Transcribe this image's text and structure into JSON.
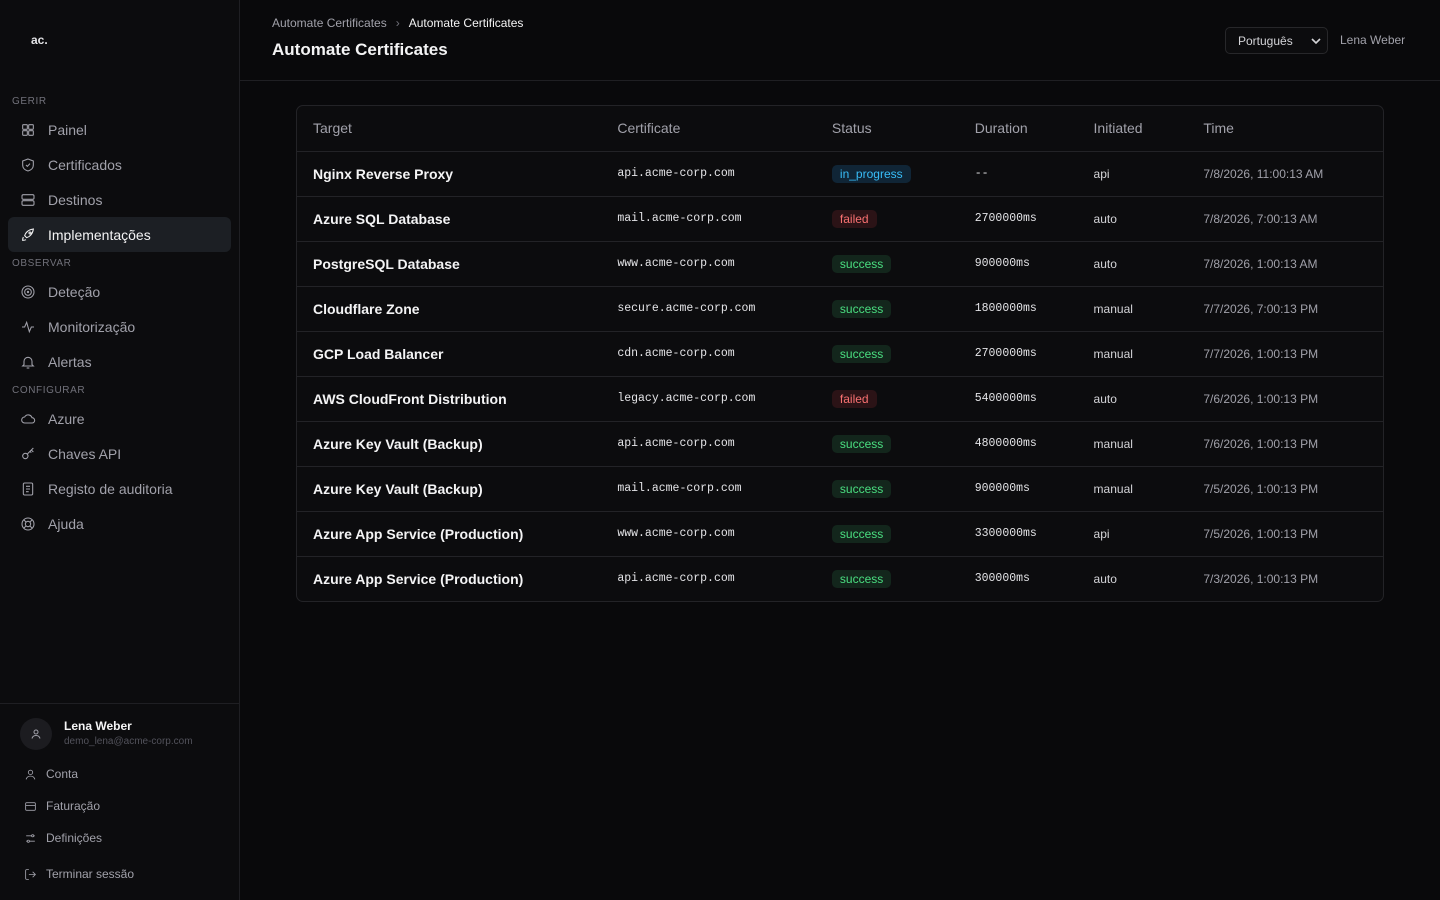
{
  "sidebar": {
    "logo": "ac.",
    "sections": [
      {
        "label": "GERIR",
        "items": [
          {
            "label": "Painel"
          },
          {
            "label": "Certificados"
          },
          {
            "label": "Destinos"
          },
          {
            "label": "Implementações",
            "active": true
          }
        ]
      },
      {
        "label": "OBSERVAR",
        "items": [
          {
            "label": "Deteção"
          },
          {
            "label": "Monitorização"
          },
          {
            "label": "Alertas"
          }
        ]
      },
      {
        "label": "CONFIGURAR",
        "items": [
          {
            "label": "Azure"
          },
          {
            "label": "Chaves API"
          },
          {
            "label": "Registo de auditoria"
          },
          {
            "label": "Ajuda"
          }
        ]
      }
    ]
  },
  "user": {
    "name": "Lena Weber",
    "email": "demo_lena@acme-corp.com",
    "links": [
      "Conta",
      "Faturação",
      "Definições"
    ],
    "logout": "Terminar sessão"
  },
  "header": {
    "breadcrumb": [
      "Automate Certificates",
      "Automate Certificates"
    ],
    "title": "Automate Certificates",
    "language": "Português",
    "user": "Lena Weber"
  },
  "table": {
    "columns": [
      "Target",
      "Certificate",
      "Status",
      "Duration",
      "Initiated",
      "Time"
    ],
    "rows": [
      [
        "Nginx Reverse Proxy",
        "api.acme-corp.com",
        "in_progress",
        "--",
        "api",
        "7/8/2026, 11:00:13 AM"
      ],
      [
        "Azure SQL Database",
        "mail.acme-corp.com",
        "failed",
        "2700000ms",
        "auto",
        "7/8/2026, 7:00:13 AM"
      ],
      [
        "PostgreSQL Database",
        "www.acme-corp.com",
        "success",
        "900000ms",
        "auto",
        "7/8/2026, 1:00:13 AM"
      ],
      [
        "Cloudflare Zone",
        "secure.acme-corp.com",
        "success",
        "1800000ms",
        "manual",
        "7/7/2026, 7:00:13 PM"
      ],
      [
        "GCP Load Balancer",
        "cdn.acme-corp.com",
        "success",
        "2700000ms",
        "manual",
        "7/7/2026, 1:00:13 PM"
      ],
      [
        "AWS CloudFront Distribution",
        "legacy.acme-corp.com",
        "failed",
        "5400000ms",
        "auto",
        "7/6/2026, 1:00:13 PM"
      ],
      [
        "Azure Key Vault (Backup)",
        "api.acme-corp.com",
        "success",
        "4800000ms",
        "manual",
        "7/6/2026, 1:00:13 PM"
      ],
      [
        "Azure Key Vault (Backup)",
        "mail.acme-corp.com",
        "success",
        "900000ms",
        "manual",
        "7/5/2026, 1:00:13 PM"
      ],
      [
        "Azure App Service (Production)",
        "www.acme-corp.com",
        "success",
        "3300000ms",
        "api",
        "7/5/2026, 1:00:13 PM"
      ],
      [
        "Azure App Service (Production)",
        "api.acme-corp.com",
        "success",
        "300000ms",
        "auto",
        "7/3/2026, 1:00:13 PM"
      ]
    ]
  }
}
